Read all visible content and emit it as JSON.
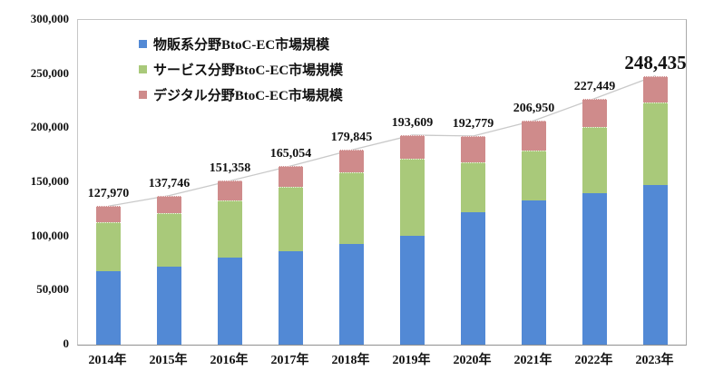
{
  "chart_data": {
    "type": "bar",
    "subtype": "stacked-bars-with-total-line",
    "categories": [
      "2014年",
      "2015年",
      "2016年",
      "2017年",
      "2018年",
      "2019年",
      "2020年",
      "2021年",
      "2022年",
      "2023年"
    ],
    "series": [
      {
        "name": "物販系分野BtoC-EC市場規模",
        "color": "#5289d5",
        "values": [
          68043,
          72398,
          80043,
          86008,
          92992,
          100515,
          122333,
          132865,
          139997,
          147236
        ]
      },
      {
        "name": "サービス分野BtoC-EC市場規模",
        "color": "#a9c97a",
        "values": [
          44816,
          49014,
          53532,
          59568,
          66471,
          71672,
          45832,
          46424,
          61477,
          76163
        ]
      },
      {
        "name": "デジタル分野BtoC-EC市場規模",
        "color": "#cf8b8b",
        "values": [
          15111,
          16334,
          17783,
          19478,
          20382,
          21422,
          24614,
          27661,
          25975,
          25036
        ]
      }
    ],
    "total_labels": [
      "127,970",
      "137,746",
      "151,358",
      "165,054",
      "179,845",
      "193,609",
      "192,779",
      "206,950",
      "227,449",
      "248,435"
    ],
    "emphasized_label_index": 9,
    "title": "",
    "xlabel": "",
    "ylabel": "",
    "ylim": [
      0,
      300000
    ],
    "y_ticks": [
      {
        "value": 0,
        "label": "0"
      },
      {
        "value": 50000,
        "label": "50,000"
      },
      {
        "value": 100000,
        "label": "100,000"
      },
      {
        "value": 150000,
        "label": "150,000"
      },
      {
        "value": 200000,
        "label": "200,000"
      },
      {
        "value": 250000,
        "label": "250,000"
      },
      {
        "value": 300000,
        "label": "300,000"
      }
    ],
    "grid": false,
    "legend_position": "top-left-inside",
    "total_line_color": "#c9c9c9",
    "colors": {
      "plot_border": "#c6c6c6",
      "axis_line": "#8f8f8f",
      "text": "#111111",
      "background": "#ffffff"
    }
  }
}
